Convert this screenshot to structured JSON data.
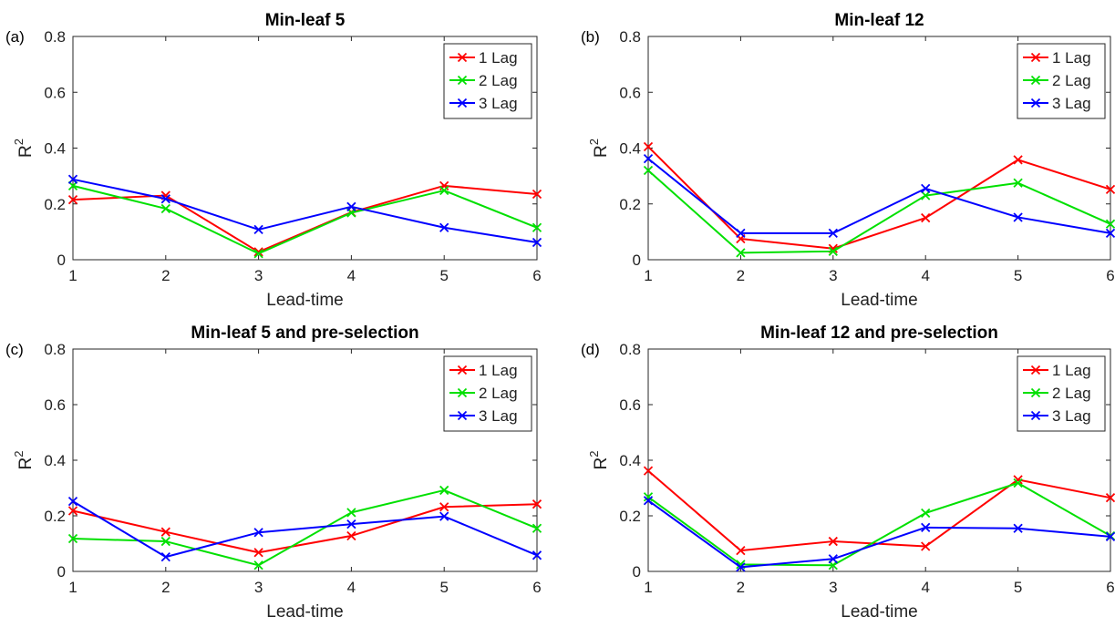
{
  "chart_data": [
    {
      "type": "line",
      "panel_label": "(a)",
      "title": "Min-leaf 5",
      "xlabel": "Lead-time",
      "ylabel": "R",
      "ylabel_superscript": "2",
      "x": [
        1,
        2,
        3,
        4,
        5,
        6
      ],
      "xlim": [
        1,
        6
      ],
      "ylim": [
        0,
        0.8
      ],
      "xticks": [
        "1",
        "2",
        "3",
        "4",
        "5",
        "6"
      ],
      "yticks": [
        "0",
        "0.2",
        "0.4",
        "0.6",
        "0.8"
      ],
      "grid": false,
      "legend_position": "top-right",
      "series": [
        {
          "name": "1 Lag",
          "color": "#ff0000",
          "values": [
            0.215,
            0.23,
            0.028,
            0.17,
            0.265,
            0.235
          ]
        },
        {
          "name": "2 Lag",
          "color": "#00e000",
          "values": [
            0.265,
            0.183,
            0.022,
            0.168,
            0.248,
            0.115
          ]
        },
        {
          "name": "3 Lag",
          "color": "#0000ff",
          "values": [
            0.288,
            0.218,
            0.108,
            0.19,
            0.115,
            0.062
          ]
        }
      ]
    },
    {
      "type": "line",
      "panel_label": "(b)",
      "title": "Min-leaf 12",
      "xlabel": "Lead-time",
      "ylabel": "R",
      "ylabel_superscript": "2",
      "x": [
        1,
        2,
        3,
        4,
        5,
        6
      ],
      "xlim": [
        1,
        6
      ],
      "ylim": [
        0,
        0.8
      ],
      "xticks": [
        "1",
        "2",
        "3",
        "4",
        "5",
        "6"
      ],
      "yticks": [
        "0",
        "0.2",
        "0.4",
        "0.6",
        "0.8"
      ],
      "grid": false,
      "legend_position": "top-right",
      "series": [
        {
          "name": "1 Lag",
          "color": "#ff0000",
          "values": [
            0.405,
            0.075,
            0.04,
            0.15,
            0.358,
            0.252
          ]
        },
        {
          "name": "2 Lag",
          "color": "#00e000",
          "values": [
            0.32,
            0.025,
            0.03,
            0.23,
            0.275,
            0.128
          ]
        },
        {
          "name": "3 Lag",
          "color": "#0000ff",
          "values": [
            0.362,
            0.095,
            0.095,
            0.255,
            0.152,
            0.095
          ]
        }
      ]
    },
    {
      "type": "line",
      "panel_label": "(c)",
      "title": "Min-leaf 5 and pre-selection",
      "xlabel": "Lead-time",
      "ylabel": "R",
      "ylabel_superscript": "2",
      "x": [
        1,
        2,
        3,
        4,
        5,
        6
      ],
      "xlim": [
        1,
        6
      ],
      "ylim": [
        0,
        0.8
      ],
      "xticks": [
        "1",
        "2",
        "3",
        "4",
        "5",
        "6"
      ],
      "yticks": [
        "0",
        "0.2",
        "0.4",
        "0.6",
        "0.8"
      ],
      "grid": false,
      "legend_position": "top-right",
      "series": [
        {
          "name": "1 Lag",
          "color": "#ff0000",
          "values": [
            0.218,
            0.142,
            0.068,
            0.128,
            0.232,
            0.242
          ]
        },
        {
          "name": "2 Lag",
          "color": "#00e000",
          "values": [
            0.118,
            0.108,
            0.022,
            0.212,
            0.292,
            0.155
          ]
        },
        {
          "name": "3 Lag",
          "color": "#0000ff",
          "values": [
            0.252,
            0.052,
            0.14,
            0.17,
            0.198,
            0.058
          ]
        }
      ]
    },
    {
      "type": "line",
      "panel_label": "(d)",
      "title": "Min-leaf 12 and pre-selection",
      "xlabel": "Lead-time",
      "ylabel": "R",
      "ylabel_superscript": "2",
      "x": [
        1,
        2,
        3,
        4,
        5,
        6
      ],
      "xlim": [
        1,
        6
      ],
      "ylim": [
        0,
        0.8
      ],
      "xticks": [
        "1",
        "2",
        "3",
        "4",
        "5",
        "6"
      ],
      "yticks": [
        "0",
        "0.2",
        "0.4",
        "0.6",
        "0.8"
      ],
      "grid": false,
      "legend_position": "top-right",
      "series": [
        {
          "name": "1 Lag",
          "color": "#ff0000",
          "values": [
            0.362,
            0.075,
            0.108,
            0.09,
            0.33,
            0.265
          ]
        },
        {
          "name": "2 Lag",
          "color": "#00e000",
          "values": [
            0.268,
            0.025,
            0.022,
            0.21,
            0.318,
            0.128
          ]
        },
        {
          "name": "3 Lag",
          "color": "#0000ff",
          "values": [
            0.255,
            0.015,
            0.045,
            0.158,
            0.155,
            0.125
          ]
        }
      ]
    }
  ]
}
